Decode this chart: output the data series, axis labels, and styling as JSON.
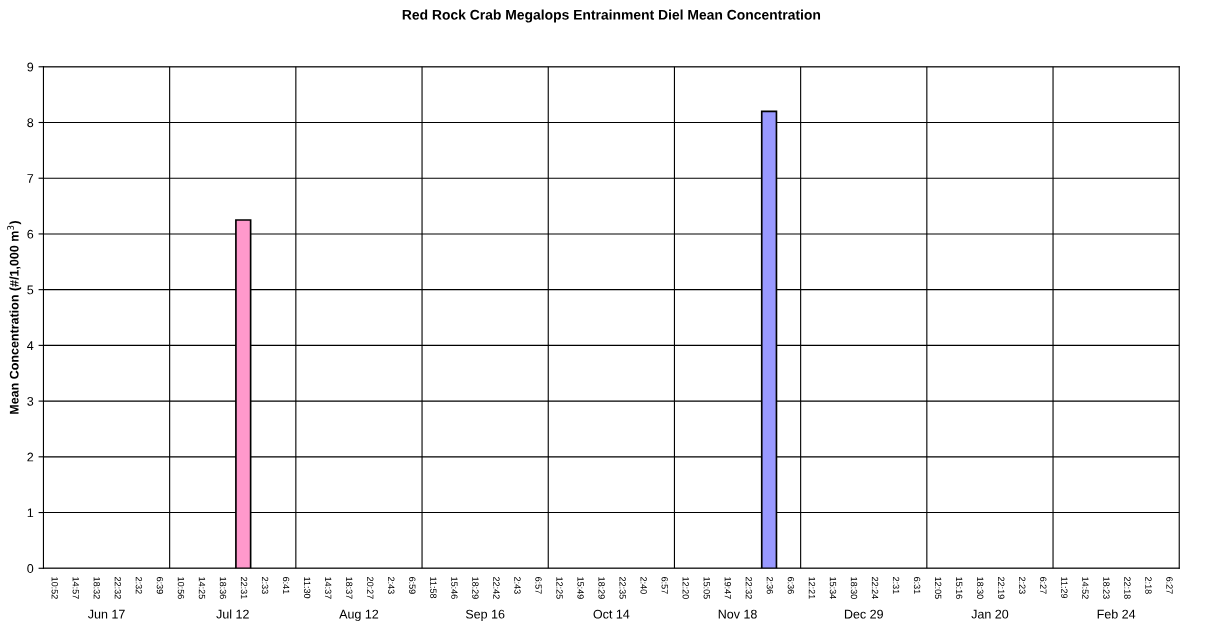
{
  "chart_data": {
    "type": "bar",
    "title": "Red Rock Crab Megalops Entrainment Diel Mean Concentration",
    "ylabel": "Mean Concentration (#/1,000 m$^{3}$)",
    "categories": [
      "10:52",
      "14:57",
      "18:32",
      "22:32",
      "2:32",
      "6:39",
      "10:56",
      "14:25",
      "18:36",
      "22:31",
      "2:33",
      "6:41",
      "11:30",
      "14:37",
      "18:37",
      "20:27",
      "2:43",
      "6:59",
      "11:58",
      "15:46",
      "18:29",
      "22:42",
      "2:43",
      "6:57",
      "12:25",
      "15:49",
      "18:29",
      "22:35",
      "2:40",
      "6:57",
      "12:20",
      "15:05",
      "19:47",
      "22:32",
      "2:36",
      "6:36",
      "12:21",
      "15:34",
      "18:30",
      "22:24",
      "2:31",
      "6:31",
      "12:05",
      "15:16",
      "18:30",
      "22:19",
      "2:23",
      "6:27",
      "11:29",
      "14:52",
      "18:23",
      "22:18",
      "2:18",
      "6:27"
    ],
    "values": [
      0,
      0,
      0,
      0,
      0,
      0,
      0,
      0,
      0,
      6.25,
      0,
      0,
      0,
      0,
      0,
      0,
      0,
      0,
      0,
      0,
      0,
      0,
      0,
      0,
      0,
      0,
      0,
      0,
      0,
      0,
      0,
      0,
      0,
      0,
      8.2,
      0,
      0,
      0,
      0,
      0,
      0,
      0,
      0,
      0,
      0,
      0,
      0,
      0,
      0,
      0,
      0,
      0,
      0,
      0
    ],
    "colors": [
      null,
      null,
      null,
      null,
      null,
      null,
      null,
      null,
      null,
      "#ff99cc",
      null,
      null,
      null,
      null,
      null,
      null,
      null,
      null,
      null,
      null,
      null,
      null,
      null,
      null,
      null,
      null,
      null,
      null,
      null,
      null,
      null,
      null,
      null,
      null,
      "#9999ff",
      null,
      null,
      null,
      null,
      null,
      null,
      null,
      null,
      null,
      null,
      null,
      null,
      null,
      null,
      null,
      null,
      null,
      null,
      null
    ],
    "annotations": [
      "Jun 17",
      "Jul 12",
      "Aug 12",
      "Sep 16",
      "Oct 14",
      "Nov 18",
      "Dec 29",
      "Jan 20",
      "Feb 24"
    ],
    "ylim": [
      0,
      9
    ],
    "yticks": [
      0,
      1,
      2,
      3,
      4,
      5,
      6,
      7,
      8,
      9
    ],
    "grid": "y",
    "legend": false
  }
}
